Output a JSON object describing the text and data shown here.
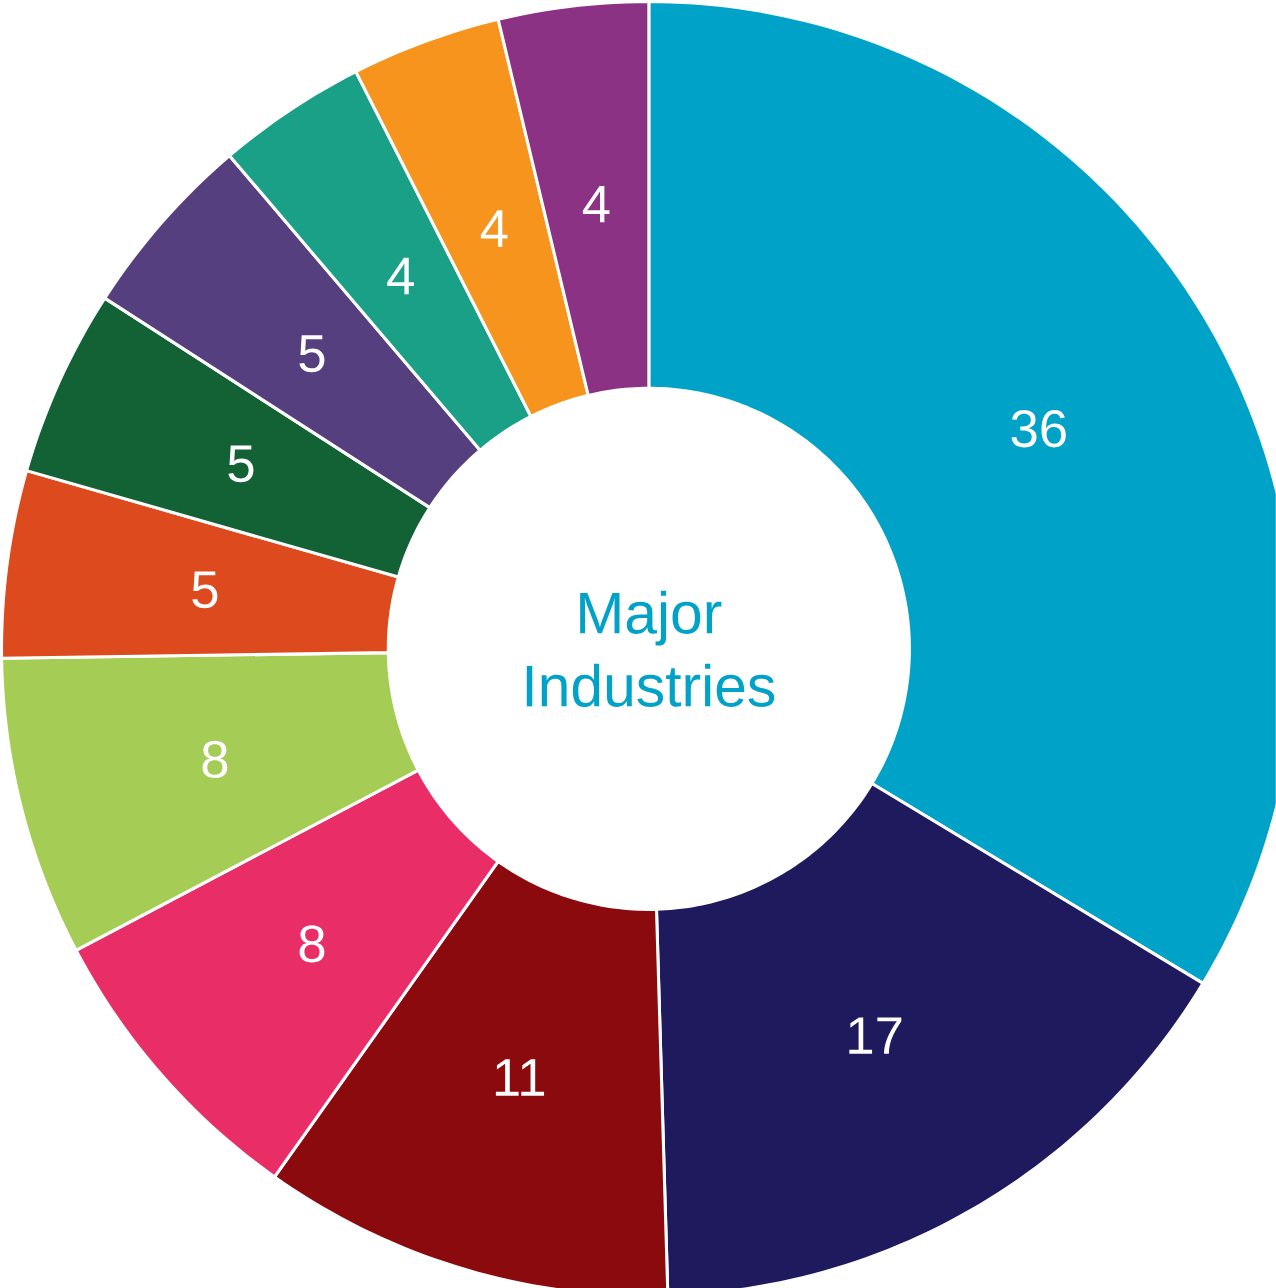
{
  "chart_data": {
    "type": "donut",
    "title": "Major Industries",
    "categories": [
      null,
      null,
      null,
      null,
      null,
      null,
      null,
      null,
      null,
      null,
      null
    ],
    "values": [
      36,
      17,
      11,
      8,
      8,
      5,
      5,
      5,
      4,
      4,
      4
    ],
    "colors": [
      "#00a3c7",
      "#1f1a5e",
      "#8b0a0e",
      "#e82d67",
      "#a5cd55",
      "#dc4a1e",
      "#136235",
      "#563f7e",
      "#1ba088",
      "#f7941d",
      "#8b3284"
    ],
    "data_labels": true
  }
}
